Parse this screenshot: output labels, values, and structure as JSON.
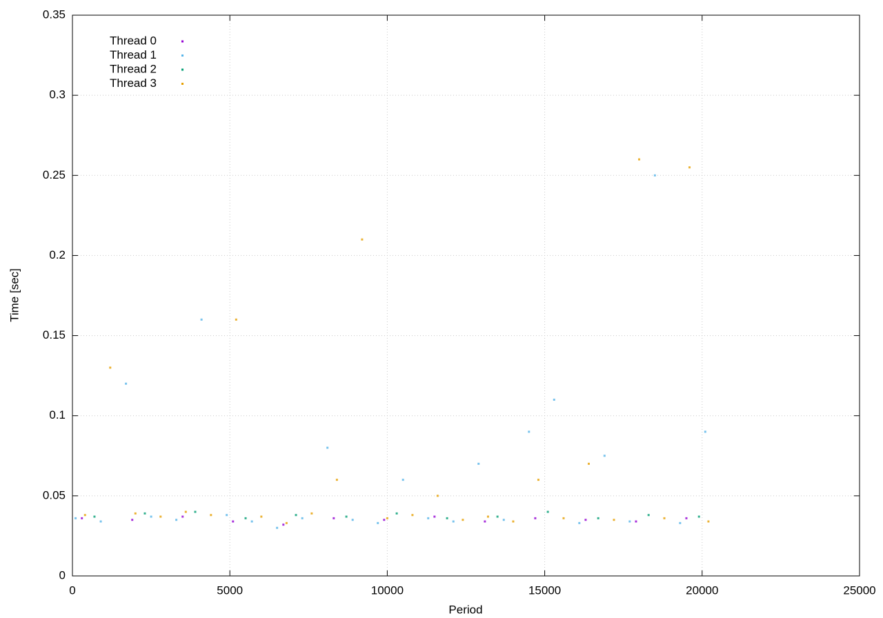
{
  "chart_data": {
    "type": "scatter",
    "xlabel": "Period",
    "ylabel": "Time [sec]",
    "xlim": [
      0,
      25000
    ],
    "xticks": [
      0,
      5000,
      10000,
      15000,
      20000,
      25000
    ],
    "ylim": [
      0,
      0.35
    ],
    "yticks": [
      0,
      0.05,
      0.1,
      0.15,
      0.2,
      0.25,
      0.3,
      0.35
    ],
    "grid": true,
    "legend": "top-left",
    "series": [
      {
        "name": "Thread 0",
        "color": "#9400d3",
        "x": [
          300,
          1900,
          3500,
          5100,
          6700,
          8300,
          9900,
          11500,
          13100,
          14700,
          16300,
          17900,
          19500
        ],
        "values": [
          0.036,
          0.035,
          0.037,
          0.034,
          0.032,
          0.036,
          0.035,
          0.037,
          0.034,
          0.036,
          0.035,
          0.034,
          0.036
        ]
      },
      {
        "name": "Thread 1",
        "color": "#56b4e9",
        "x": [
          100,
          900,
          1700,
          2500,
          3300,
          4100,
          4900,
          5700,
          6500,
          7300,
          8100,
          8900,
          9700,
          10500,
          11300,
          12100,
          12900,
          13700,
          14500,
          15300,
          16100,
          16900,
          17700,
          18500,
          19300,
          20100
        ],
        "values": [
          0.036,
          0.034,
          0.12,
          0.037,
          0.035,
          0.16,
          0.038,
          0.034,
          0.03,
          0.036,
          0.08,
          0.035,
          0.033,
          0.06,
          0.036,
          0.034,
          0.07,
          0.035,
          0.09,
          0.11,
          0.033,
          0.075,
          0.034,
          0.25,
          0.033,
          0.09
        ]
      },
      {
        "name": "Thread 2",
        "color": "#009e73",
        "x": [
          700,
          2300,
          3900,
          5500,
          7100,
          8700,
          10300,
          11900,
          13500,
          15100,
          16700,
          18300,
          19900
        ],
        "values": [
          0.037,
          0.039,
          0.04,
          0.036,
          0.038,
          0.037,
          0.039,
          0.036,
          0.037,
          0.04,
          0.036,
          0.038,
          0.037
        ]
      },
      {
        "name": "Thread 3",
        "color": "#e69f00",
        "x": [
          400,
          1200,
          2000,
          2800,
          3600,
          4400,
          5200,
          6000,
          6800,
          7600,
          8400,
          9200,
          10000,
          10800,
          11600,
          12400,
          13200,
          14000,
          14800,
          15600,
          16400,
          17200,
          18000,
          18800,
          19600,
          20200
        ],
        "values": [
          0.038,
          0.13,
          0.039,
          0.037,
          0.04,
          0.038,
          0.16,
          0.037,
          0.033,
          0.039,
          0.06,
          0.21,
          0.036,
          0.038,
          0.05,
          0.035,
          0.037,
          0.034,
          0.06,
          0.036,
          0.07,
          0.035,
          0.26,
          0.036,
          0.255,
          0.034
        ]
      }
    ]
  }
}
